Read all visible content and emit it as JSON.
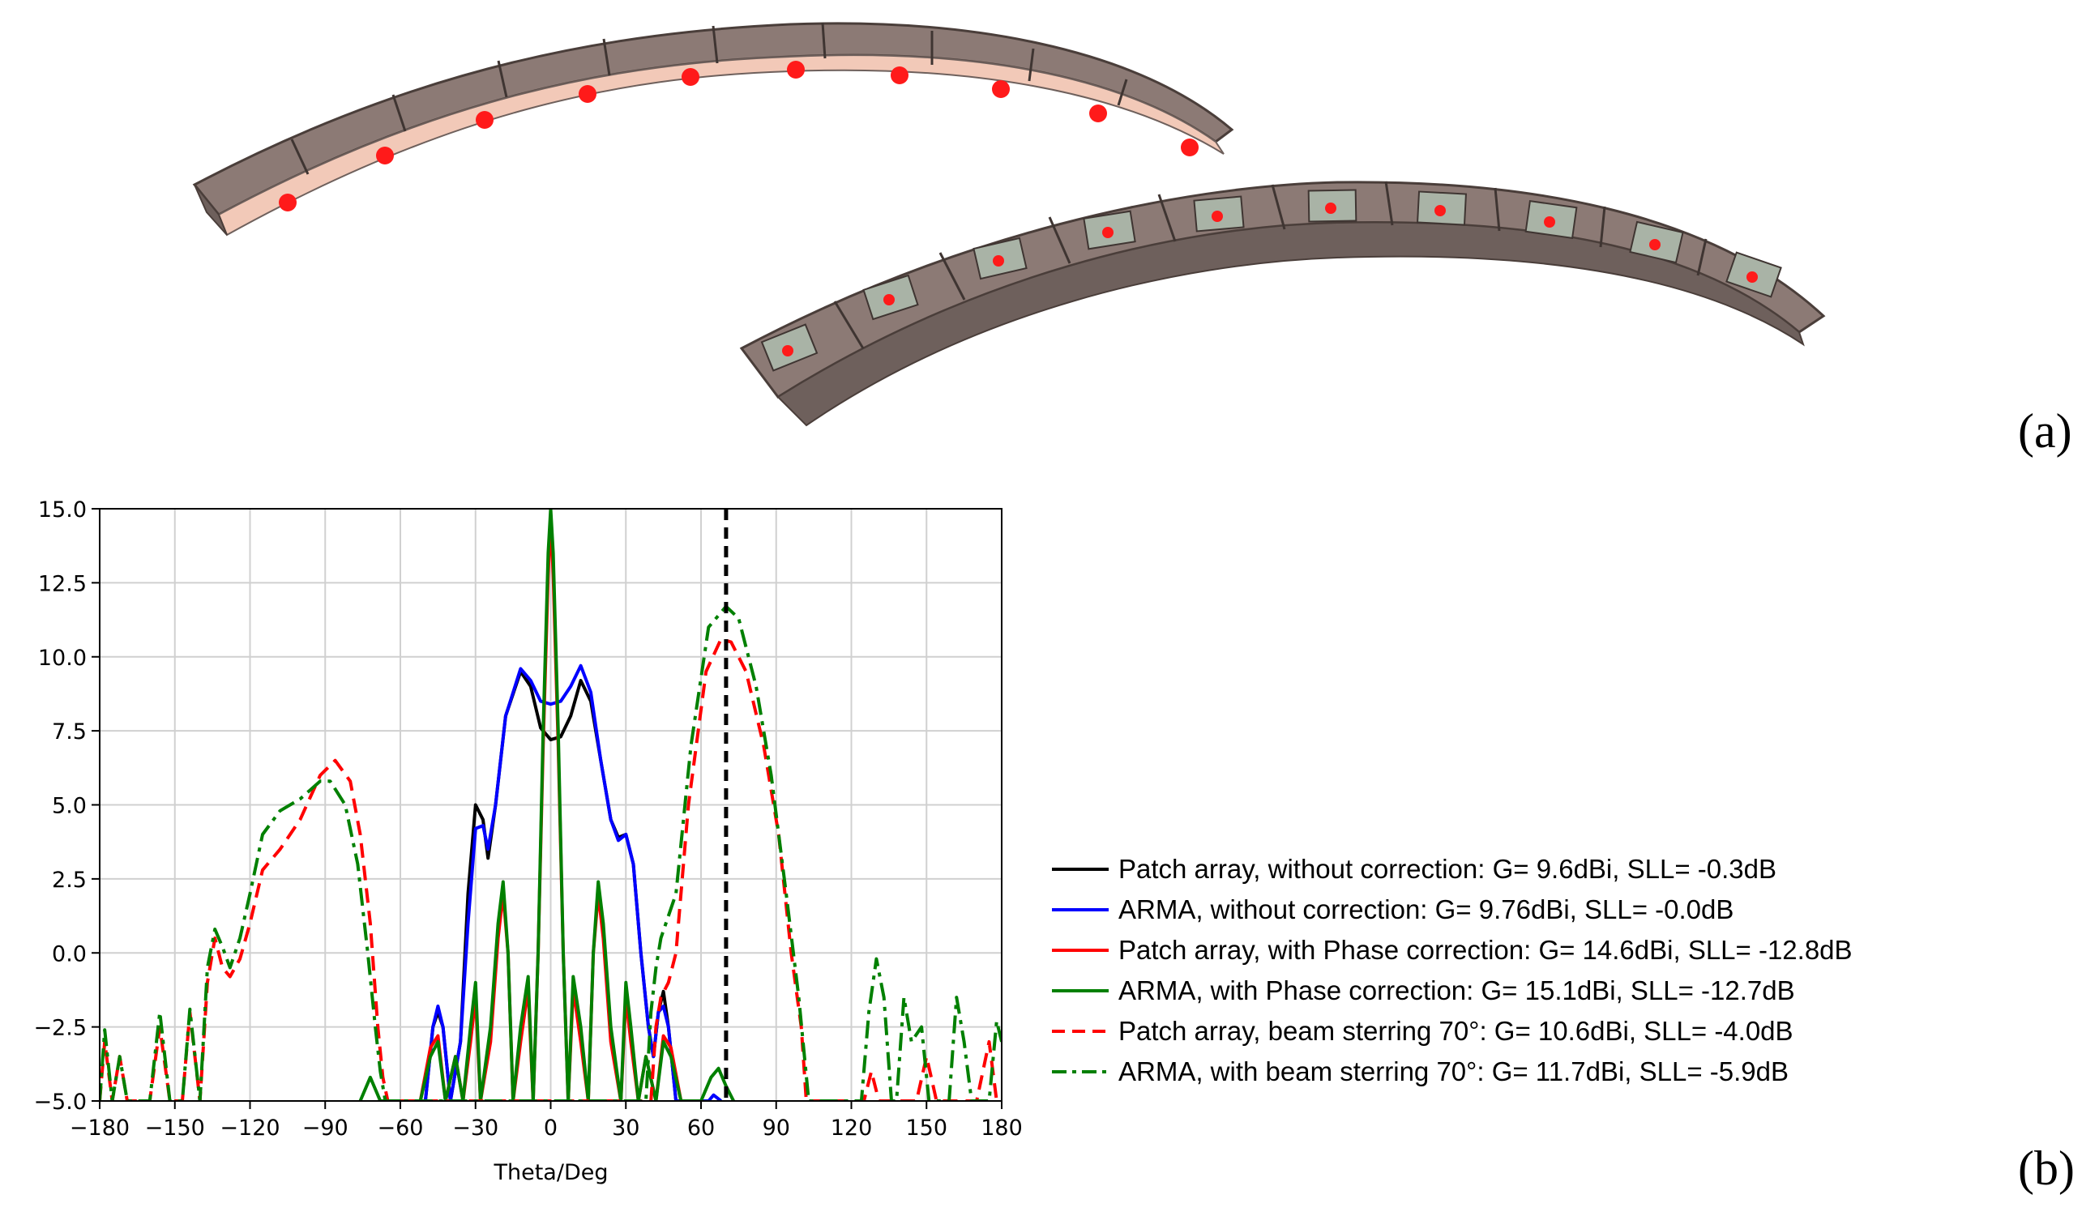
{
  "panels": {
    "a_label": "(a)",
    "b_label": "(b)"
  },
  "illustration": {
    "description_colors": {
      "box_face": "#8c7a75",
      "box_side": "#6e605c",
      "substrate": "#f2c9b8",
      "patch": "#a9b3a6",
      "feed": "#ff1a1a"
    }
  },
  "chart_data": {
    "type": "line",
    "xlabel": "Theta/Deg",
    "ylabel": "",
    "xlim": [
      -180,
      180
    ],
    "ylim": [
      -5,
      15
    ],
    "xticks": [
      "−180",
      "−150",
      "−120",
      "−90",
      "−60",
      "−30",
      "0",
      "30",
      "60",
      "90",
      "120",
      "150",
      "180"
    ],
    "yticks": [
      "−5.0",
      "−2.5",
      "0.0",
      "2.5",
      "5.0",
      "7.5",
      "10.0",
      "12.5",
      "15.0"
    ],
    "grid": true,
    "legend_placement": "right",
    "vline": {
      "x": 70,
      "style": "dashed",
      "color": "#000000"
    },
    "series": [
      {
        "name": "Patch array, without correction: G= 9.6dBi, SLL= -0.3dB",
        "color": "#000000",
        "dash": "solid",
        "points": [
          [
            -50,
            -5
          ],
          [
            -47,
            -2.5
          ],
          [
            -45,
            -2.0
          ],
          [
            -43,
            -2.5
          ],
          [
            -40,
            -5
          ],
          [
            -36,
            -3
          ],
          [
            -33,
            2
          ],
          [
            -30,
            5.0
          ],
          [
            -27,
            4.5
          ],
          [
            -25,
            3.2
          ],
          [
            -22,
            5
          ],
          [
            -18,
            8
          ],
          [
            -12,
            9.5
          ],
          [
            -8,
            9.0
          ],
          [
            -4,
            7.6
          ],
          [
            0,
            7.2
          ],
          [
            4,
            7.3
          ],
          [
            8,
            8.0
          ],
          [
            12,
            9.2
          ],
          [
            16,
            8.5
          ],
          [
            20,
            6.5
          ],
          [
            24,
            4.5
          ],
          [
            27,
            3.9
          ],
          [
            30,
            4.0
          ],
          [
            33,
            3.0
          ],
          [
            36,
            0
          ],
          [
            39,
            -2.5
          ],
          [
            41,
            -3.5
          ],
          [
            43,
            -2
          ],
          [
            45,
            -1.3
          ],
          [
            47,
            -2.5
          ],
          [
            50,
            -5
          ]
        ]
      },
      {
        "name": "ARMA, without correction: G= 9.76dBi, SLL= -0.0dB",
        "color": "#0000ff",
        "dash": "solid",
        "points": [
          [
            -50,
            -5
          ],
          [
            -47,
            -2.5
          ],
          [
            -45,
            -1.8
          ],
          [
            -43,
            -2.5
          ],
          [
            -40,
            -5
          ],
          [
            -36,
            -3
          ],
          [
            -33,
            1
          ],
          [
            -30,
            4.2
          ],
          [
            -27,
            4.3
          ],
          [
            -25,
            3.5
          ],
          [
            -22,
            5
          ],
          [
            -18,
            8
          ],
          [
            -12,
            9.6
          ],
          [
            -8,
            9.2
          ],
          [
            -4,
            8.5
          ],
          [
            0,
            8.4
          ],
          [
            4,
            8.5
          ],
          [
            8,
            9.0
          ],
          [
            12,
            9.7
          ],
          [
            16,
            8.8
          ],
          [
            20,
            6.5
          ],
          [
            24,
            4.5
          ],
          [
            27,
            3.8
          ],
          [
            30,
            4.0
          ],
          [
            33,
            3.0
          ],
          [
            36,
            0
          ],
          [
            39,
            -2.5
          ],
          [
            41,
            -3.5
          ],
          [
            43,
            -2
          ],
          [
            45,
            -1.8
          ],
          [
            47,
            -2.5
          ],
          [
            50,
            -5
          ],
          [
            63,
            -5
          ],
          [
            65,
            -4.8
          ],
          [
            68,
            -5
          ]
        ]
      },
      {
        "name": "Patch array, with Phase correction: G= 14.6dBi, SLL= -12.8dB",
        "color": "#ff0000",
        "dash": "solid",
        "points": [
          [
            -52,
            -5
          ],
          [
            -48,
            -3.2
          ],
          [
            -45,
            -2.8
          ],
          [
            -42,
            -5
          ],
          [
            -38,
            -3.5
          ],
          [
            -35,
            -5
          ],
          [
            -32,
            -3
          ],
          [
            -30,
            -1.5
          ],
          [
            -28,
            -5
          ],
          [
            -24,
            -3
          ],
          [
            -21,
            0.5
          ],
          [
            -19,
            2.0
          ],
          [
            -17,
            0
          ],
          [
            -15,
            -5
          ],
          [
            -12,
            -3
          ],
          [
            -9,
            -1.2
          ],
          [
            -7,
            -5
          ],
          [
            -5,
            0
          ],
          [
            -3,
            7
          ],
          [
            -1,
            12.8
          ],
          [
            0,
            14.6
          ],
          [
            1,
            12.8
          ],
          [
            3,
            7
          ],
          [
            5,
            0
          ],
          [
            7,
            -5
          ],
          [
            9,
            -1.2
          ],
          [
            12,
            -3
          ],
          [
            15,
            -5
          ],
          [
            17,
            0
          ],
          [
            19,
            2.0
          ],
          [
            21,
            0.5
          ],
          [
            24,
            -3
          ],
          [
            28,
            -5
          ],
          [
            30,
            -1.5
          ],
          [
            32,
            -3
          ],
          [
            35,
            -5
          ],
          [
            38,
            -3.5
          ],
          [
            42,
            -5
          ],
          [
            45,
            -2.8
          ],
          [
            48,
            -3.2
          ],
          [
            52,
            -5
          ]
        ]
      },
      {
        "name": "ARMA, with Phase correction: G= 15.1dBi, SLL= -12.7dB",
        "color": "#008000",
        "dash": "solid",
        "points": [
          [
            -76,
            -5
          ],
          [
            -72,
            -4.2
          ],
          [
            -68,
            -5
          ],
          [
            -52,
            -5
          ],
          [
            -48,
            -3.5
          ],
          [
            -45,
            -3.0
          ],
          [
            -42,
            -5
          ],
          [
            -38,
            -3.5
          ],
          [
            -35,
            -5
          ],
          [
            -32,
            -2.5
          ],
          [
            -30,
            -1.0
          ],
          [
            -28,
            -5
          ],
          [
            -24,
            -2.5
          ],
          [
            -21,
            1.0
          ],
          [
            -19,
            2.4
          ],
          [
            -17,
            0
          ],
          [
            -15,
            -5
          ],
          [
            -12,
            -2.5
          ],
          [
            -9,
            -0.8
          ],
          [
            -7,
            -5
          ],
          [
            -5,
            0
          ],
          [
            -3,
            7.5
          ],
          [
            -1,
            13.5
          ],
          [
            0,
            15.0
          ],
          [
            1,
            13.5
          ],
          [
            3,
            7.5
          ],
          [
            5,
            0
          ],
          [
            7,
            -5
          ],
          [
            9,
            -0.8
          ],
          [
            12,
            -2.5
          ],
          [
            15,
            -5
          ],
          [
            17,
            0
          ],
          [
            19,
            2.4
          ],
          [
            21,
            1.0
          ],
          [
            24,
            -2.5
          ],
          [
            28,
            -5
          ],
          [
            30,
            -1.0
          ],
          [
            32,
            -2.5
          ],
          [
            35,
            -5
          ],
          [
            38,
            -3.5
          ],
          [
            42,
            -5
          ],
          [
            45,
            -3.0
          ],
          [
            48,
            -3.5
          ],
          [
            52,
            -5
          ],
          [
            60,
            -5
          ],
          [
            64,
            -4.2
          ],
          [
            67,
            -3.9
          ],
          [
            70,
            -4.5
          ],
          [
            73,
            -5
          ]
        ]
      },
      {
        "name": "Patch array, beam sterring 70°: G= 10.6dBi, SLL= -4.0dB",
        "color": "#ff0000",
        "dash": "dashed",
        "points": [
          [
            -180,
            -5
          ],
          [
            -178,
            -3
          ],
          [
            -175,
            -5
          ],
          [
            -172,
            -3.5
          ],
          [
            -169,
            -5
          ],
          [
            -160,
            -5
          ],
          [
            -156,
            -2.5
          ],
          [
            -152,
            -5
          ],
          [
            -147,
            -5
          ],
          [
            -144,
            -2
          ],
          [
            -140,
            -5
          ],
          [
            -137,
            -1
          ],
          [
            -134,
            0.5
          ],
          [
            -131,
            -0.5
          ],
          [
            -128,
            -0.8
          ],
          [
            -124,
            -0.2
          ],
          [
            -120,
            1
          ],
          [
            -115,
            2.8
          ],
          [
            -108,
            3.5
          ],
          [
            -100,
            4.5
          ],
          [
            -92,
            6.0
          ],
          [
            -86,
            6.5
          ],
          [
            -80,
            5.8
          ],
          [
            -76,
            4
          ],
          [
            -72,
            1
          ],
          [
            -69,
            -2.5
          ],
          [
            -67,
            -4.2
          ],
          [
            -65,
            -5
          ],
          [
            40,
            -5
          ],
          [
            42,
            -2.5
          ],
          [
            44,
            -1.5
          ],
          [
            47,
            -1
          ],
          [
            50,
            0
          ],
          [
            55,
            5
          ],
          [
            62,
            9.5
          ],
          [
            68,
            10.6
          ],
          [
            72,
            10.5
          ],
          [
            78,
            9.5
          ],
          [
            85,
            7
          ],
          [
            91,
            4
          ],
          [
            96,
            0
          ],
          [
            100,
            -2.5
          ],
          [
            102,
            -5
          ],
          [
            125,
            -5
          ],
          [
            128,
            -4.0
          ],
          [
            131,
            -5
          ],
          [
            146,
            -5
          ],
          [
            150,
            -3.5
          ],
          [
            154,
            -5
          ],
          [
            170,
            -5
          ],
          [
            175,
            -3
          ],
          [
            178,
            -5
          ]
        ]
      },
      {
        "name": "ARMA, with beam sterring 70°: G= 11.7dBi, SLL= -5.9dB",
        "color": "#008000",
        "dash": "dashdot",
        "points": [
          [
            -180,
            -5
          ],
          [
            -178,
            -2.6
          ],
          [
            -175,
            -5
          ],
          [
            -172,
            -3.5
          ],
          [
            -169,
            -5
          ],
          [
            -160,
            -5
          ],
          [
            -156,
            -2
          ],
          [
            -152,
            -5
          ],
          [
            -147,
            -5
          ],
          [
            -144,
            -1.9
          ],
          [
            -140,
            -5
          ],
          [
            -137,
            -0.5
          ],
          [
            -134,
            0.8
          ],
          [
            -131,
            0.2
          ],
          [
            -128,
            -0.5
          ],
          [
            -124,
            0.5
          ],
          [
            -120,
            2
          ],
          [
            -115,
            4
          ],
          [
            -108,
            4.8
          ],
          [
            -100,
            5.2
          ],
          [
            -92,
            5.8
          ],
          [
            -88,
            5.8
          ],
          [
            -82,
            5
          ],
          [
            -77,
            3
          ],
          [
            -73,
            0
          ],
          [
            -70,
            -2.5
          ],
          [
            -68,
            -4
          ],
          [
            -66,
            -5
          ],
          [
            38,
            -5
          ],
          [
            40,
            -2
          ],
          [
            42,
            -0.5
          ],
          [
            44,
            0.5
          ],
          [
            46,
            1.0
          ],
          [
            50,
            2
          ],
          [
            56,
            7
          ],
          [
            63,
            11
          ],
          [
            70,
            11.7
          ],
          [
            75,
            11.3
          ],
          [
            82,
            9
          ],
          [
            88,
            6
          ],
          [
            94,
            2
          ],
          [
            99,
            -1.5
          ],
          [
            103,
            -5
          ],
          [
            124,
            -5
          ],
          [
            127,
            -2
          ],
          [
            130,
            -0.2
          ],
          [
            133,
            -1.5
          ],
          [
            136,
            -5
          ],
          [
            138,
            -5
          ],
          [
            141,
            -1.5
          ],
          [
            144,
            -3
          ],
          [
            148,
            -2.5
          ],
          [
            151,
            -5
          ],
          [
            159,
            -5
          ],
          [
            162,
            -1.5
          ],
          [
            165,
            -3
          ],
          [
            168,
            -5
          ],
          [
            175,
            -5
          ],
          [
            178,
            -2.3
          ],
          [
            180,
            -3
          ]
        ]
      }
    ]
  }
}
